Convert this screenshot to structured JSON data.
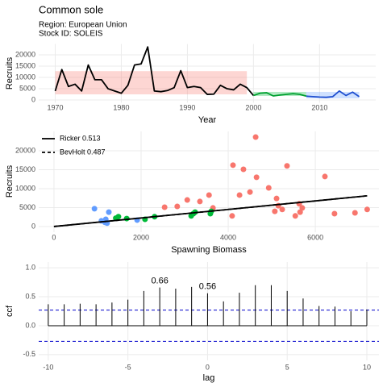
{
  "chart_data": [
    {
      "type": "line",
      "title": "Common sole",
      "subtitle": [
        "Region: European Union",
        "Stock ID: SOLEIS"
      ],
      "xlabel": "Year",
      "ylabel": "Recruits",
      "x": [
        1970,
        1971,
        1972,
        1973,
        1974,
        1975,
        1976,
        1977,
        1978,
        1979,
        1980,
        1981,
        1982,
        1983,
        1984,
        1985,
        1986,
        1987,
        1988,
        1989,
        1990,
        1991,
        1992,
        1993,
        1994,
        1995,
        1996,
        1997,
        1998,
        1999,
        2000,
        2001,
        2002,
        2003,
        2004,
        2005,
        2006,
        2007,
        2008,
        2009,
        2010,
        2011,
        2012,
        2013,
        2014,
        2015,
        2016
      ],
      "series": [
        {
          "color": "#000000",
          "values": [
            4000,
            13500,
            6000,
            7000,
            4000,
            15500,
            9000,
            9000,
            5000,
            4000,
            3000,
            6500,
            15500,
            16000,
            23500,
            4000,
            3700,
            4200,
            5500,
            13000,
            5500,
            6000,
            5500,
            2500,
            2600,
            6500,
            5000,
            4500,
            7000,
            5500,
            2000,
            null,
            null,
            null,
            null,
            null,
            null,
            null,
            null,
            null,
            null,
            null,
            null,
            null,
            null,
            null,
            null
          ]
        },
        {
          "color": "#00a030",
          "values": [
            null,
            null,
            null,
            null,
            null,
            null,
            null,
            null,
            null,
            null,
            null,
            null,
            null,
            null,
            null,
            null,
            null,
            null,
            null,
            null,
            null,
            null,
            null,
            null,
            null,
            null,
            null,
            null,
            null,
            null,
            2000,
            3000,
            3200,
            1800,
            2200,
            2500,
            2800,
            2500,
            1700,
            null,
            null,
            null,
            null,
            null,
            null,
            null,
            null
          ]
        },
        {
          "color": "#1f4fd0",
          "values": [
            null,
            null,
            null,
            null,
            null,
            null,
            null,
            null,
            null,
            null,
            null,
            null,
            null,
            null,
            null,
            null,
            null,
            null,
            null,
            null,
            null,
            null,
            null,
            null,
            null,
            null,
            null,
            null,
            null,
            null,
            null,
            null,
            null,
            null,
            null,
            null,
            null,
            null,
            1700,
            1500,
            1300,
            1200,
            1500,
            4000,
            2000,
            3500,
            1500
          ]
        }
      ],
      "bands": [
        {
          "x": [
            1970,
            1999
          ],
          "y": [
            2500,
            12800
          ],
          "color": "#f8766d"
        },
        {
          "x": [
            2000,
            2008
          ],
          "y": [
            1800,
            3600
          ],
          "color": "#00ba38"
        },
        {
          "x": [
            2008,
            2016
          ],
          "y": [
            700,
            3600
          ],
          "color": "#619cff"
        }
      ],
      "xlim": [
        1967.5,
        2018.5
      ],
      "xticks": [
        1970,
        1980,
        1990,
        2000,
        2010
      ],
      "ylim": [
        -1200,
        24800
      ],
      "yticks": [
        0,
        5000,
        10000,
        15000,
        20000
      ],
      "grid": true
    },
    {
      "type": "scatter",
      "xlabel": "Spawning Biomass",
      "ylabel": "Recruits",
      "series": [
        {
          "color": "#f8766d",
          "x": [
            4630,
            4110,
            4350,
            5350,
            4650,
            6220,
            4500,
            4930,
            4260,
            5110,
            3560,
            3060,
            3350,
            2830,
            2540,
            3650,
            4090,
            5150,
            5240,
            5070,
            5630,
            5700,
            5540,
            5650,
            6440,
            6910,
            7190
          ],
          "y": [
            23600,
            16200,
            15100,
            16000,
            13000,
            13200,
            9100,
            10200,
            8300,
            7400,
            8300,
            7000,
            6600,
            5300,
            5100,
            4900,
            2800,
            5500,
            4500,
            4000,
            6000,
            4900,
            2800,
            3800,
            3400,
            3600,
            4500
          ]
        },
        {
          "color": "#00ba38",
          "x": [
            1480,
            1670,
            2090,
            2310,
            3150,
            3200,
            3240,
            3590,
            3610,
            1420
          ],
          "y": [
            2600,
            2100,
            1900,
            2600,
            2800,
            3400,
            3800,
            3400,
            4000,
            2200
          ]
        },
        {
          "color": "#619cff",
          "x": [
            930,
            1260,
            1090,
            1170,
            1190,
            1910,
            1220
          ],
          "y": [
            4700,
            3800,
            1500,
            1100,
            1900,
            1700,
            900
          ]
        }
      ],
      "lines": [
        {
          "name": "Ricker 0.513",
          "dash": false,
          "x": [
            0,
            7190
          ],
          "y": [
            0,
            8100
          ]
        },
        {
          "name": "BevHolt 0.487",
          "dash": true,
          "x": [
            0,
            7190
          ],
          "y": [
            0,
            8100
          ]
        }
      ],
      "xlim": [
        -350,
        7460
      ],
      "xticks": [
        0,
        2000,
        4000,
        6000
      ],
      "ylim": [
        -1500,
        25100
      ],
      "yticks": [
        0,
        5000,
        10000,
        15000,
        20000
      ],
      "grid": true,
      "legend": "top-left"
    },
    {
      "type": "bar",
      "xlabel": "lag",
      "ylabel": "ccf",
      "x": [
        -10,
        -9,
        -8,
        -7,
        -6,
        -5,
        -4,
        -3,
        -2,
        -1,
        0,
        1,
        2,
        3,
        4,
        5,
        6,
        7,
        8,
        9,
        10
      ],
      "values": [
        0.37,
        0.37,
        0.38,
        0.37,
        0.4,
        0.45,
        0.6,
        0.66,
        0.64,
        0.67,
        0.56,
        0.42,
        0.57,
        0.7,
        0.7,
        0.6,
        0.47,
        0.34,
        0.33,
        0.25,
        0.28
      ],
      "hlines": [
        0.27,
        -0.27
      ],
      "hline_color": "#0000cc",
      "annotations": [
        {
          "x": -3,
          "y": 0.66,
          "label": "0.66"
        },
        {
          "x": 0,
          "y": 0.56,
          "label": "0.56"
        }
      ],
      "xlim": [
        -10.6,
        10.76
      ],
      "xticks": [
        -10,
        -5,
        0,
        5,
        10
      ],
      "ylim": [
        -0.6,
        1.1
      ],
      "yticks": [
        -0.5,
        {
          "value": 0,
          "label": "0.0"
        },
        0.5,
        {
          "value": 1,
          "label": "1.0"
        }
      ],
      "grid": true
    }
  ]
}
